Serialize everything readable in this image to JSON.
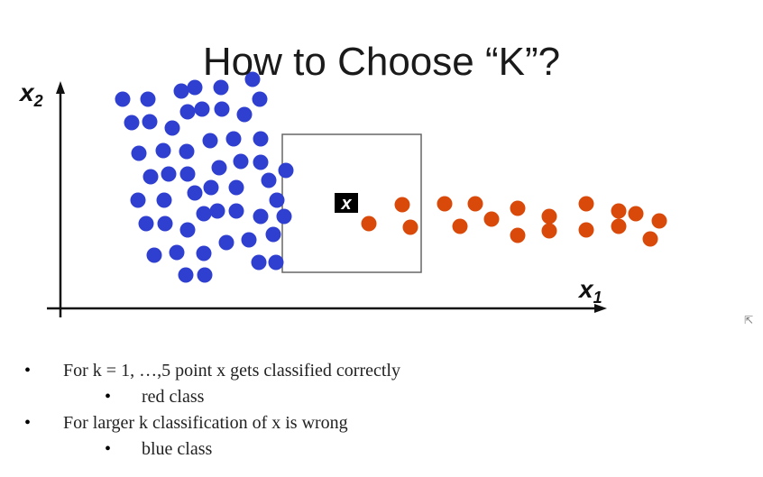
{
  "slide": {
    "title": "How to Choose “K”?",
    "bullets": [
      {
        "text": "For k = 1, …,5 point x gets classified correctly",
        "sub": "red class"
      },
      {
        "text": "For larger k classification of x is wrong",
        "sub": "blue class"
      }
    ],
    "bullet_glyph": "•"
  },
  "diagram": {
    "x_axis_label": "x",
    "x_axis_subscript": "1",
    "y_axis_label": "x",
    "y_axis_subscript": "2",
    "query_label": "x",
    "colors": {
      "blue": "#2f3fd0",
      "red": "#d8490a",
      "axis": "#111111"
    },
    "class_counts": {
      "blue": 74,
      "red": 19
    }
  },
  "cursor_icon": "pointer-arrow-icon"
}
